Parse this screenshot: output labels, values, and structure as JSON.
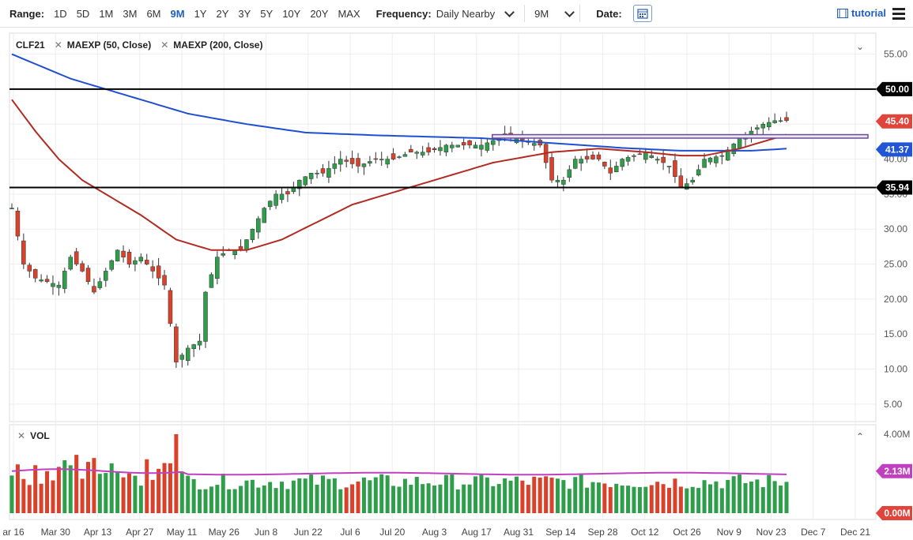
{
  "toolbar": {
    "range_label": "Range:",
    "ranges": [
      "1D",
      "5D",
      "1M",
      "3M",
      "6M",
      "9M",
      "1Y",
      "2Y",
      "3Y",
      "5Y",
      "10Y",
      "20Y",
      "MAX"
    ],
    "active_range": "9M",
    "frequency_label": "Frequency:",
    "frequency_value": "Daily Nearby",
    "period_value": "9M",
    "date_label": "Date:",
    "tutorial_label": "tutorial"
  },
  "legend": {
    "symbol": "CLF21",
    "ma1": "MAEXP (50, Close)",
    "ma2": "MAEXP (200, Close)",
    "vol": "VOL"
  },
  "colors": {
    "up": "#2e9e4a",
    "down": "#d9412b",
    "ma50": "#b22a22",
    "ma200": "#1f4fd1",
    "vol_avg": "#c040c0",
    "hline": "#000000",
    "rect": "#6a4c93"
  },
  "chart_data": [
    {
      "type": "candlestick",
      "title": "",
      "ylim": [
        2.5,
        58
      ],
      "y_ticks": [
        "55.00",
        "50.00",
        "45.00",
        "40.00",
        "35.00",
        "30.00",
        "25.00",
        "20.00",
        "15.00",
        "10.00",
        "5.00"
      ],
      "x_ticks": [
        "ar 16",
        "Mar 30",
        "Apr 13",
        "Apr 27",
        "May 11",
        "May 26",
        "Jun 8",
        "Jun 22",
        "Jul 6",
        "Jul 20",
        "Aug 3",
        "Aug 17",
        "Aug 31",
        "Sep 14",
        "Sep 28",
        "Oct 12",
        "Oct 26",
        "Nov 9",
        "Nov 23",
        "Dec 7",
        "Dec 21"
      ],
      "price_path": [
        [
          0,
          33
        ],
        [
          2,
          25
        ],
        [
          4,
          23
        ],
        [
          8,
          22
        ],
        [
          10,
          26
        ],
        [
          12,
          24
        ],
        [
          14,
          21
        ],
        [
          16,
          24
        ],
        [
          18,
          27
        ],
        [
          20,
          25
        ],
        [
          22,
          26
        ],
        [
          26,
          22
        ],
        [
          28,
          11
        ],
        [
          30,
          13
        ],
        [
          32,
          14
        ],
        [
          33,
          21
        ],
        [
          35,
          26
        ],
        [
          37,
          27
        ],
        [
          39,
          27
        ],
        [
          41,
          30
        ],
        [
          43,
          33
        ],
        [
          45,
          35
        ],
        [
          47,
          35
        ],
        [
          49,
          37
        ],
        [
          51,
          38
        ],
        [
          53,
          38
        ],
        [
          56,
          40
        ],
        [
          59,
          39
        ],
        [
          62,
          40
        ],
        [
          65,
          40
        ],
        [
          68,
          41
        ],
        [
          71,
          41
        ],
        [
          74,
          42
        ],
        [
          77,
          42
        ],
        [
          80,
          42
        ],
        [
          83,
          43
        ],
        [
          86,
          43
        ],
        [
          88,
          42.5
        ],
        [
          90,
          42
        ],
        [
          92,
          37
        ],
        [
          94,
          37
        ],
        [
          96,
          40
        ],
        [
          98,
          40
        ],
        [
          100,
          40
        ],
        [
          102,
          38
        ],
        [
          104,
          40
        ],
        [
          106,
          40.5
        ],
        [
          108,
          41
        ],
        [
          110,
          40
        ],
        [
          112,
          39
        ],
        [
          114,
          36
        ],
        [
          116,
          37
        ],
        [
          118,
          40
        ],
        [
          121,
          40.5
        ],
        [
          124,
          43
        ],
        [
          126,
          44
        ],
        [
          128,
          45
        ],
        [
          130,
          45.5
        ],
        [
          132,
          45.5
        ]
      ],
      "horizontal_lines": [
        {
          "label": "50.00",
          "value": 50.0
        },
        {
          "label": "35.94",
          "value": 35.94
        }
      ],
      "price_labels": [
        {
          "label": "45.40",
          "value": 45.4,
          "color": "#e0443a"
        },
        {
          "label": "41.37",
          "value": 41.37,
          "color": "#2155d6"
        }
      ],
      "resistance_zone": {
        "from_label": "Aug 17",
        "y_low": 43.0,
        "y_high": 43.5
      },
      "ma50": [
        [
          0,
          48.5
        ],
        [
          4,
          44
        ],
        [
          8,
          40
        ],
        [
          12,
          37
        ],
        [
          16,
          35
        ],
        [
          22,
          32
        ],
        [
          28,
          28.5
        ],
        [
          34,
          27
        ],
        [
          40,
          27
        ],
        [
          46,
          28.5
        ],
        [
          52,
          31
        ],
        [
          58,
          33.5
        ],
        [
          66,
          35.5
        ],
        [
          74,
          37.5
        ],
        [
          82,
          39.5
        ],
        [
          92,
          41
        ],
        [
          100,
          41.5
        ],
        [
          108,
          41
        ],
        [
          114,
          40.5
        ],
        [
          118,
          40.5
        ],
        [
          124,
          41.5
        ],
        [
          130,
          43
        ],
        [
          132,
          43.5
        ]
      ],
      "ma200": [
        [
          0,
          55
        ],
        [
          10,
          51.5
        ],
        [
          20,
          49
        ],
        [
          30,
          46.5
        ],
        [
          40,
          45
        ],
        [
          50,
          43.8
        ],
        [
          62,
          43.4
        ],
        [
          80,
          43.0
        ],
        [
          92,
          42.3
        ],
        [
          104,
          41.6
        ],
        [
          114,
          41.2
        ],
        [
          120,
          41.2
        ],
        [
          126,
          41.2
        ],
        [
          132,
          41.5
        ]
      ]
    },
    {
      "type": "bar",
      "title": "",
      "y_ticks": [
        "4.00M",
        "2.13M",
        "0.00M"
      ],
      "ylim": [
        0,
        4.0
      ],
      "avg_value": 2.13,
      "last_value": "2.13M",
      "zero_label": "0.00M"
    }
  ]
}
